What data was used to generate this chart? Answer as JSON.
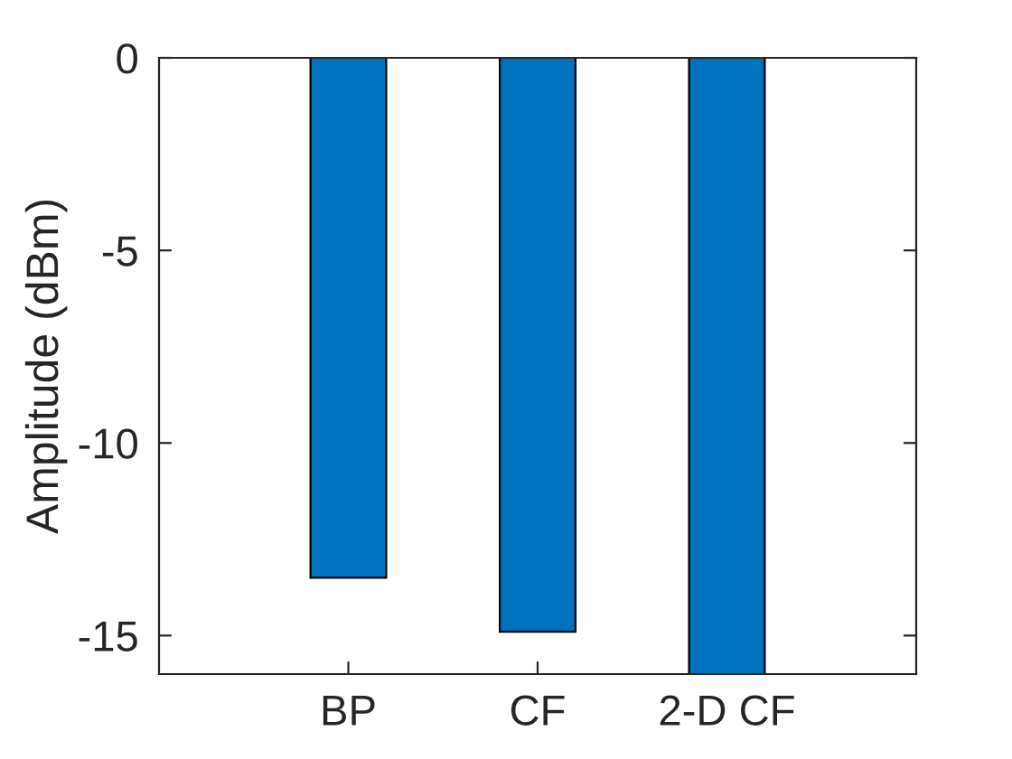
{
  "chart_data": {
    "type": "bar",
    "ylabel": "Amplitude (dBm)",
    "categories": [
      "BP",
      "CF",
      "2-D CF"
    ],
    "values": [
      -13.5,
      -14.9,
      -16
    ],
    "color": "#0072bd",
    "ylim": [
      -16,
      0
    ],
    "yticks": [
      -15,
      -10,
      -5,
      0
    ],
    "grid": false
  }
}
